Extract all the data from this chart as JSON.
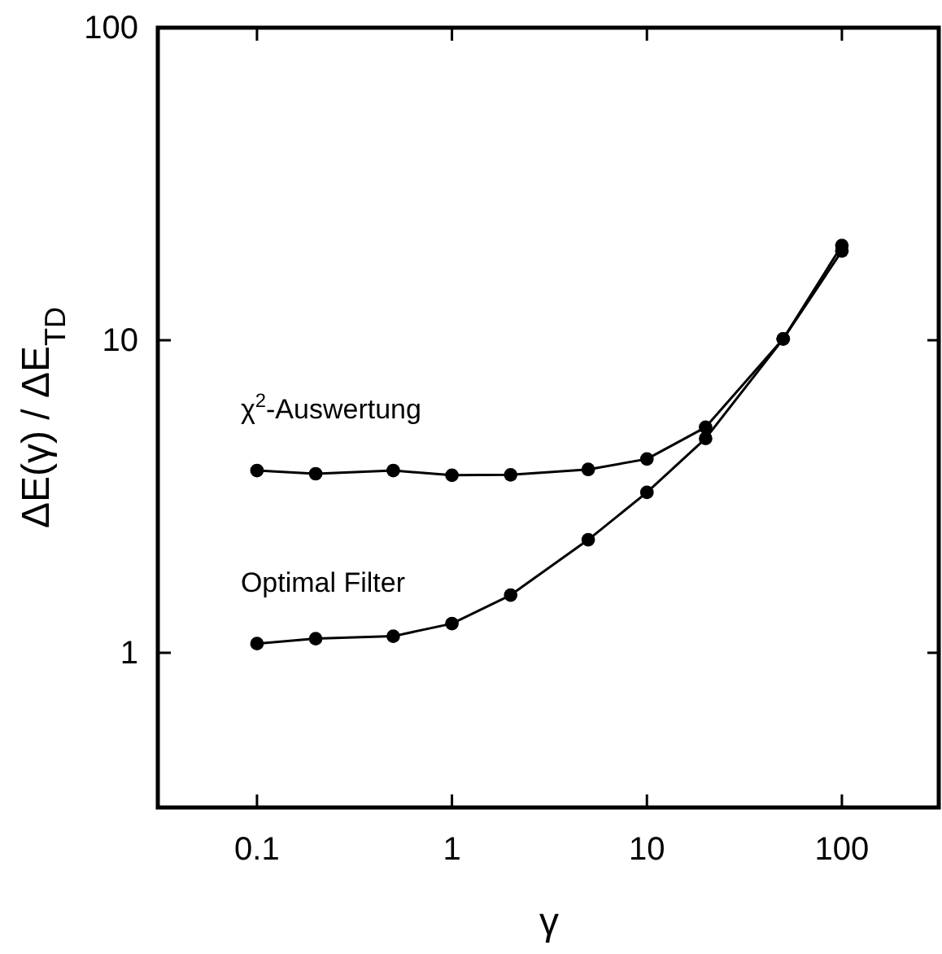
{
  "chart_data": {
    "type": "line",
    "xlabel": "γ",
    "ylabel": "ΔE(γ) / ΔE$_{TD}$",
    "log": "xy",
    "marker": "circle",
    "line_style": "solid",
    "grid": false,
    "xlim": [
      0.031,
      320
    ],
    "xticks": [
      0.1,
      1,
      10,
      100
    ],
    "ylim": [
      0.32,
      100
    ],
    "yticks": [
      1,
      10,
      100
    ],
    "series": [
      {
        "color": "#000000",
        "x": [
          0.1,
          0.2,
          0.5,
          1,
          2,
          5,
          10,
          20,
          50,
          100
        ],
        "values": [
          3.83,
          3.74,
          3.83,
          3.7,
          3.71,
          3.86,
          4.17,
          5.27,
          10.1,
          19.3
        ]
      },
      {
        "color": "#000000",
        "x": [
          0.1,
          0.2,
          0.5,
          1,
          2,
          5,
          10,
          20,
          50,
          100
        ],
        "values": [
          1.07,
          1.11,
          1.13,
          1.24,
          1.53,
          2.3,
          3.26,
          4.85,
          10.1,
          20.1
        ]
      }
    ],
    "annotations": [
      {
        "text": "χ$^{2}$-Auswertung",
        "x": 0.1,
        "y": 3.83
      },
      {
        "text": "Optimal Filter",
        "x": 0.1,
        "y": 1.07
      }
    ]
  }
}
